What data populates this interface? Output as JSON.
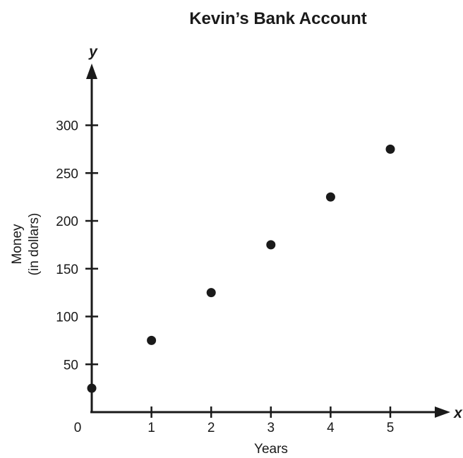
{
  "chart_data": {
    "type": "scatter",
    "title": "Kevin’s Bank Account",
    "xlabel": "Years",
    "ylabel_lines": [
      "Money",
      "(in dollars)"
    ],
    "x_axis_letter": "x",
    "y_axis_letter": "y",
    "origin_label": "0",
    "xlim": [
      0,
      5.8
    ],
    "ylim": [
      0,
      355
    ],
    "x_ticks": [
      1,
      2,
      3,
      4,
      5
    ],
    "x_tick_labels": [
      "1",
      "2",
      "3",
      "4",
      "5"
    ],
    "y_ticks": [
      50,
      100,
      150,
      200,
      250,
      300
    ],
    "y_tick_labels": [
      "50",
      "100",
      "150",
      "200",
      "250",
      "300"
    ],
    "grid": false,
    "points": [
      {
        "x": 0,
        "y": 25
      },
      {
        "x": 1,
        "y": 75
      },
      {
        "x": 2,
        "y": 125
      },
      {
        "x": 3,
        "y": 175
      },
      {
        "x": 4,
        "y": 225
      },
      {
        "x": 5,
        "y": 275
      }
    ]
  }
}
